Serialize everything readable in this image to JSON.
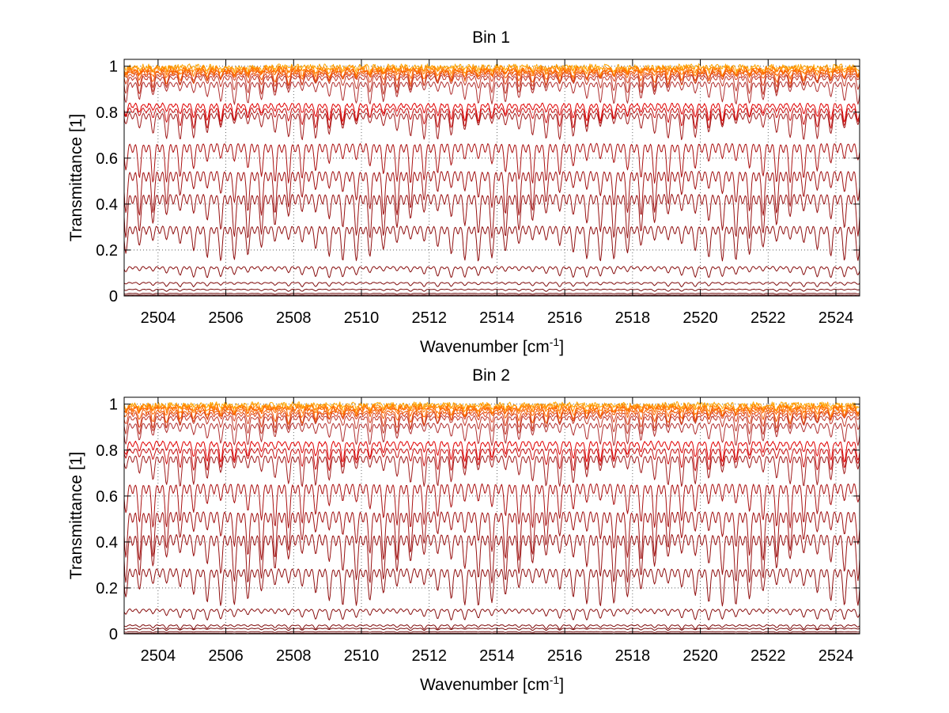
{
  "chart_data": [
    {
      "type": "line",
      "title": "Bin 1",
      "xlabel_main": "Wavenumber [cm",
      "xlabel_sup": "-1",
      "xlabel_end": "]",
      "ylabel": "Transmittance [1]",
      "xlim": [
        2503.0,
        2524.7
      ],
      "ylim": [
        0,
        1.03
      ],
      "xticks": [
        2504,
        2506,
        2508,
        2510,
        2512,
        2514,
        2516,
        2518,
        2520,
        2522,
        2524
      ],
      "xtick_labels": [
        "2504",
        "2506",
        "2508",
        "2510",
        "2512",
        "2514",
        "2516",
        "2518",
        "2520",
        "2522",
        "2524"
      ],
      "yticks": [
        0,
        0.2,
        0.4,
        0.6,
        0.8,
        1
      ],
      "ytick_labels": [
        "0",
        "0.2",
        "0.4",
        "0.6",
        "0.8",
        "1"
      ],
      "grid": true,
      "legend": "none",
      "line_spacing_cm-1": 0.4,
      "series": [
        {
          "color": "#ffa500",
          "baseline": 1.0,
          "depth": 0.02,
          "noise": 0.012,
          "width": 1.5
        },
        {
          "color": "#ff8c00",
          "baseline": 0.995,
          "depth": 0.03,
          "noise": 0.01,
          "width": 1.5
        },
        {
          "color": "#ff7a00",
          "baseline": 0.99,
          "depth": 0.04,
          "noise": 0.01,
          "width": 1.5
        },
        {
          "color": "#ff6600",
          "baseline": 0.985,
          "depth": 0.05,
          "noise": 0.008,
          "width": 1.5
        },
        {
          "color": "#f05a00",
          "baseline": 0.98,
          "depth": 0.06,
          "noise": 0.006,
          "width": 1.2
        },
        {
          "color": "#d9411e",
          "baseline": 0.97,
          "depth": 0.06,
          "noise": 0.004,
          "width": 1
        },
        {
          "color": "#c0392b",
          "baseline": 0.96,
          "depth": 0.08,
          "noise": 0.004,
          "width": 1
        },
        {
          "color": "#b03030",
          "baseline": 0.935,
          "depth": 0.1,
          "noise": 0.003,
          "width": 1
        },
        {
          "color": "#e00000",
          "baseline": 0.84,
          "depth": 0.08,
          "noise": 0.004,
          "width": 1.8
        },
        {
          "color": "#c81010",
          "baseline": 0.82,
          "depth": 0.09,
          "noise": 0.003,
          "width": 1
        },
        {
          "color": "#a11d1d",
          "baseline": 0.8,
          "depth": 0.12,
          "noise": 0.002,
          "width": 1
        },
        {
          "color": "#aa1010",
          "baseline": 0.67,
          "depth": 0.18,
          "noise": 0.002,
          "width": 1
        },
        {
          "color": "#a01010",
          "baseline": 0.55,
          "depth": 0.2,
          "noise": 0.002,
          "width": 1
        },
        {
          "color": "#981010",
          "baseline": 0.45,
          "depth": 0.2,
          "noise": 0.002,
          "width": 1
        },
        {
          "color": "#900f0f",
          "baseline": 0.31,
          "depth": 0.16,
          "noise": 0.002,
          "width": 1
        },
        {
          "color": "#880e0e",
          "baseline": 0.13,
          "depth": 0.05,
          "noise": 0.001,
          "width": 1
        },
        {
          "color": "#800d0d",
          "baseline": 0.06,
          "depth": 0.02,
          "noise": 0.001,
          "width": 1
        },
        {
          "color": "#780c0c",
          "baseline": 0.03,
          "depth": 0.01,
          "noise": 0.0005,
          "width": 1
        },
        {
          "color": "#700b0b",
          "baseline": 0.012,
          "depth": 0.005,
          "noise": 0.0,
          "width": 1
        },
        {
          "color": "#600a0a",
          "baseline": 0.004,
          "depth": 0.002,
          "noise": 0.0,
          "width": 1
        }
      ]
    },
    {
      "type": "line",
      "title": "Bin 2",
      "xlabel_main": "Wavenumber [cm",
      "xlabel_sup": "-1",
      "xlabel_end": "]",
      "ylabel": "Transmittance [1]",
      "xlim": [
        2503.0,
        2524.7
      ],
      "ylim": [
        0,
        1.03
      ],
      "xticks": [
        2504,
        2506,
        2508,
        2510,
        2512,
        2514,
        2516,
        2518,
        2520,
        2522,
        2524
      ],
      "xtick_labels": [
        "2504",
        "2506",
        "2508",
        "2510",
        "2512",
        "2514",
        "2516",
        "2518",
        "2520",
        "2522",
        "2524"
      ],
      "yticks": [
        0,
        0.2,
        0.4,
        0.6,
        0.8,
        1
      ],
      "ytick_labels": [
        "0",
        "0.2",
        "0.4",
        "0.6",
        "0.8",
        "1"
      ],
      "grid": true,
      "legend": "none",
      "line_spacing_cm-1": 0.4,
      "series": [
        {
          "color": "#ffa500",
          "baseline": 1.0,
          "depth": 0.02,
          "noise": 0.012,
          "width": 1.5
        },
        {
          "color": "#ff8c00",
          "baseline": 0.995,
          "depth": 0.03,
          "noise": 0.01,
          "width": 1.5
        },
        {
          "color": "#ff7a00",
          "baseline": 0.99,
          "depth": 0.04,
          "noise": 0.01,
          "width": 1.5
        },
        {
          "color": "#ff6600",
          "baseline": 0.985,
          "depth": 0.05,
          "noise": 0.008,
          "width": 1.5
        },
        {
          "color": "#f05a00",
          "baseline": 0.975,
          "depth": 0.06,
          "noise": 0.006,
          "width": 1.2
        },
        {
          "color": "#d9411e",
          "baseline": 0.965,
          "depth": 0.07,
          "noise": 0.004,
          "width": 1
        },
        {
          "color": "#c0392b",
          "baseline": 0.95,
          "depth": 0.08,
          "noise": 0.004,
          "width": 1
        },
        {
          "color": "#b03030",
          "baseline": 0.92,
          "depth": 0.1,
          "noise": 0.003,
          "width": 1
        },
        {
          "color": "#e00000",
          "baseline": 0.84,
          "depth": 0.09,
          "noise": 0.004,
          "width": 1.8
        },
        {
          "color": "#c81010",
          "baseline": 0.81,
          "depth": 0.1,
          "noise": 0.003,
          "width": 1
        },
        {
          "color": "#a11d1d",
          "baseline": 0.78,
          "depth": 0.14,
          "noise": 0.002,
          "width": 1
        },
        {
          "color": "#aa1010",
          "baseline": 0.66,
          "depth": 0.2,
          "noise": 0.002,
          "width": 1
        },
        {
          "color": "#a01010",
          "baseline": 0.54,
          "depth": 0.22,
          "noise": 0.002,
          "width": 1
        },
        {
          "color": "#981010",
          "baseline": 0.44,
          "depth": 0.22,
          "noise": 0.002,
          "width": 1
        },
        {
          "color": "#900f0f",
          "baseline": 0.29,
          "depth": 0.17,
          "noise": 0.002,
          "width": 1
        },
        {
          "color": "#880e0e",
          "baseline": 0.11,
          "depth": 0.05,
          "noise": 0.001,
          "width": 1
        },
        {
          "color": "#800d0d",
          "baseline": 0.04,
          "depth": 0.02,
          "noise": 0.001,
          "width": 1
        },
        {
          "color": "#780c0c",
          "baseline": 0.025,
          "depth": 0.01,
          "noise": 0.0005,
          "width": 1
        },
        {
          "color": "#700b0b",
          "baseline": 0.01,
          "depth": 0.004,
          "noise": 0.0,
          "width": 1
        },
        {
          "color": "#600a0a",
          "baseline": 0.003,
          "depth": 0.002,
          "noise": 0.0,
          "width": 1
        }
      ]
    }
  ]
}
